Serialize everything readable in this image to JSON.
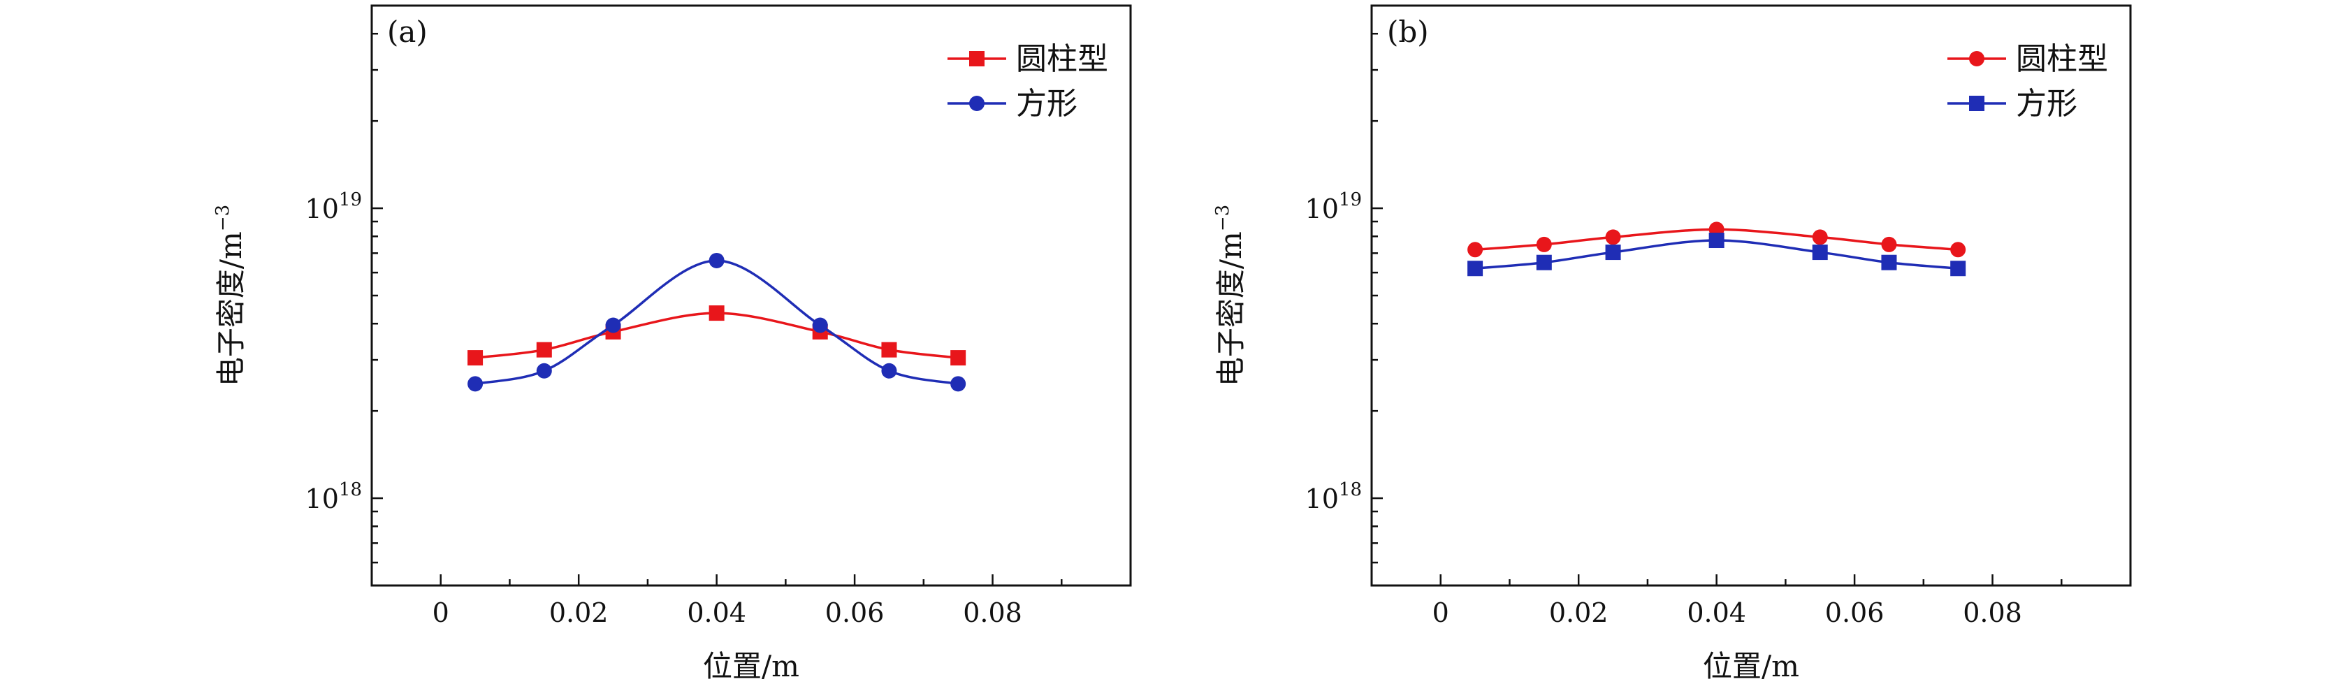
{
  "chart_data": [
    {
      "panel": "(a)",
      "type": "line",
      "yscale": "log",
      "xlabel": "位置/m",
      "ylabel": "电子密度/m",
      "ylabel_exp": "−3",
      "xlim": [
        -0.01,
        0.1
      ],
      "ylim": [
        5e+17,
        5e+19
      ],
      "xticks": [
        0,
        0.02,
        0.04,
        0.06,
        0.08
      ],
      "xtick_labels": [
        "0",
        "0.02",
        "0.04",
        "0.06",
        "0.08"
      ],
      "yticks": [
        {
          "value": 1e+18,
          "base": "10",
          "exp": "18"
        },
        {
          "value": 1e+19,
          "base": "10",
          "exp": "19"
        }
      ],
      "x": [
        0.005,
        0.015,
        0.025,
        0.04,
        0.055,
        0.065,
        0.075
      ],
      "series": [
        {
          "name": "圆柱型",
          "color": "#e8161b",
          "marker": "square",
          "values": [
            3.05e+18,
            3.25e+18,
            3.75e+18,
            4.35e+18,
            3.75e+18,
            3.25e+18,
            3.05e+18
          ]
        },
        {
          "name": "方形",
          "color": "#1f2db5",
          "marker": "circle",
          "values": [
            2.48e+18,
            2.75e+18,
            3.95e+18,
            6.6e+18,
            3.95e+18,
            2.75e+18,
            2.48e+18
          ]
        }
      ]
    },
    {
      "panel": "(b)",
      "type": "line",
      "yscale": "log",
      "xlabel": "位置/m",
      "ylabel": "电子密度/m",
      "ylabel_exp": "−3",
      "xlim": [
        -0.01,
        0.1
      ],
      "ylim": [
        5e+17,
        5e+19
      ],
      "xticks": [
        0,
        0.02,
        0.04,
        0.06,
        0.08
      ],
      "xtick_labels": [
        "0",
        "0.02",
        "0.04",
        "0.06",
        "0.08"
      ],
      "yticks": [
        {
          "value": 1e+18,
          "base": "10",
          "exp": "18"
        },
        {
          "value": 1e+19,
          "base": "10",
          "exp": "19"
        }
      ],
      "x": [
        0.005,
        0.015,
        0.025,
        0.04,
        0.055,
        0.065,
        0.075
      ],
      "series": [
        {
          "name": "圆柱型",
          "color": "#e8161b",
          "marker": "circle",
          "values": [
            7.2e+18,
            7.5e+18,
            7.95e+18,
            8.45e+18,
            7.95e+18,
            7.5e+18,
            7.2e+18
          ]
        },
        {
          "name": "方形",
          "color": "#1f2db5",
          "marker": "square",
          "values": [
            6.2e+18,
            6.5e+18,
            7.05e+18,
            7.75e+18,
            7.05e+18,
            6.5e+18,
            6.2e+18
          ]
        }
      ]
    }
  ]
}
